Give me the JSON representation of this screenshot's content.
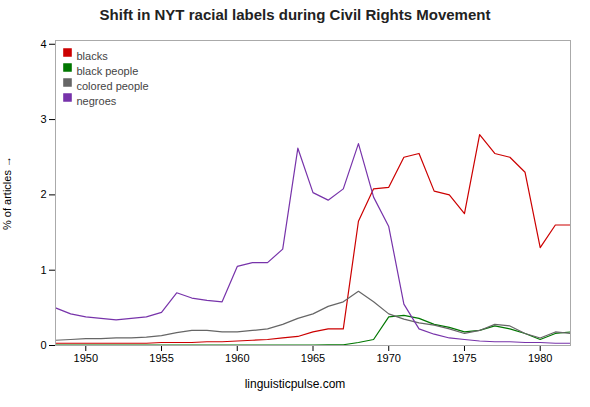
{
  "chart_data": {
    "type": "line",
    "title": "Shift in NYT racial labels during Civil Rights Movement",
    "ylabel": "% of articles",
    "annotation": "linguisticpulse.com",
    "x": [
      1948,
      1949,
      1950,
      1951,
      1952,
      1953,
      1954,
      1955,
      1956,
      1957,
      1958,
      1959,
      1960,
      1961,
      1962,
      1963,
      1964,
      1965,
      1966,
      1967,
      1968,
      1969,
      1970,
      1971,
      1972,
      1973,
      1974,
      1975,
      1976,
      1977,
      1978,
      1979,
      1980,
      1981,
      1982
    ],
    "series": [
      {
        "name": "blacks",
        "color": "#cc0000",
        "values": [
          0.03,
          0.03,
          0.03,
          0.03,
          0.03,
          0.03,
          0.03,
          0.04,
          0.04,
          0.04,
          0.05,
          0.05,
          0.06,
          0.07,
          0.08,
          0.1,
          0.12,
          0.18,
          0.22,
          0.22,
          1.65,
          2.08,
          2.1,
          2.5,
          2.55,
          2.05,
          2.0,
          1.75,
          2.8,
          2.55,
          2.5,
          2.3,
          1.3,
          1.6,
          1.6
        ]
      },
      {
        "name": "black people",
        "color": "#007700",
        "values": [
          0.005,
          0.005,
          0.005,
          0.005,
          0.005,
          0.005,
          0.005,
          0.005,
          0.005,
          0.005,
          0.005,
          0.005,
          0.005,
          0.005,
          0.005,
          0.005,
          0.005,
          0.005,
          0.01,
          0.01,
          0.04,
          0.08,
          0.38,
          0.4,
          0.36,
          0.28,
          0.24,
          0.18,
          0.2,
          0.26,
          0.22,
          0.16,
          0.08,
          0.16,
          0.18
        ]
      },
      {
        "name": "colored people",
        "color": "#666666",
        "values": [
          0.07,
          0.08,
          0.09,
          0.09,
          0.1,
          0.1,
          0.11,
          0.13,
          0.17,
          0.2,
          0.2,
          0.18,
          0.18,
          0.2,
          0.22,
          0.28,
          0.36,
          0.42,
          0.52,
          0.58,
          0.72,
          0.58,
          0.42,
          0.35,
          0.3,
          0.27,
          0.22,
          0.16,
          0.2,
          0.28,
          0.26,
          0.16,
          0.1,
          0.18,
          0.16
        ]
      },
      {
        "name": "negroes",
        "color": "#7733aa",
        "values": [
          0.5,
          0.42,
          0.38,
          0.36,
          0.34,
          0.36,
          0.38,
          0.44,
          0.7,
          0.63,
          0.6,
          0.58,
          1.05,
          1.1,
          1.1,
          1.28,
          2.62,
          2.03,
          1.93,
          2.08,
          2.68,
          1.97,
          1.58,
          0.55,
          0.22,
          0.15,
          0.1,
          0.08,
          0.06,
          0.05,
          0.05,
          0.04,
          0.04,
          0.03,
          0.03
        ]
      }
    ],
    "xlim": [
      1948,
      1982
    ],
    "ylim": [
      0,
      4.05
    ],
    "xticks": [
      1950,
      1955,
      1960,
      1965,
      1970,
      1975,
      1980
    ],
    "yticks": [
      0,
      1,
      2,
      3,
      4
    ],
    "grid": false,
    "legend": "upper left"
  }
}
